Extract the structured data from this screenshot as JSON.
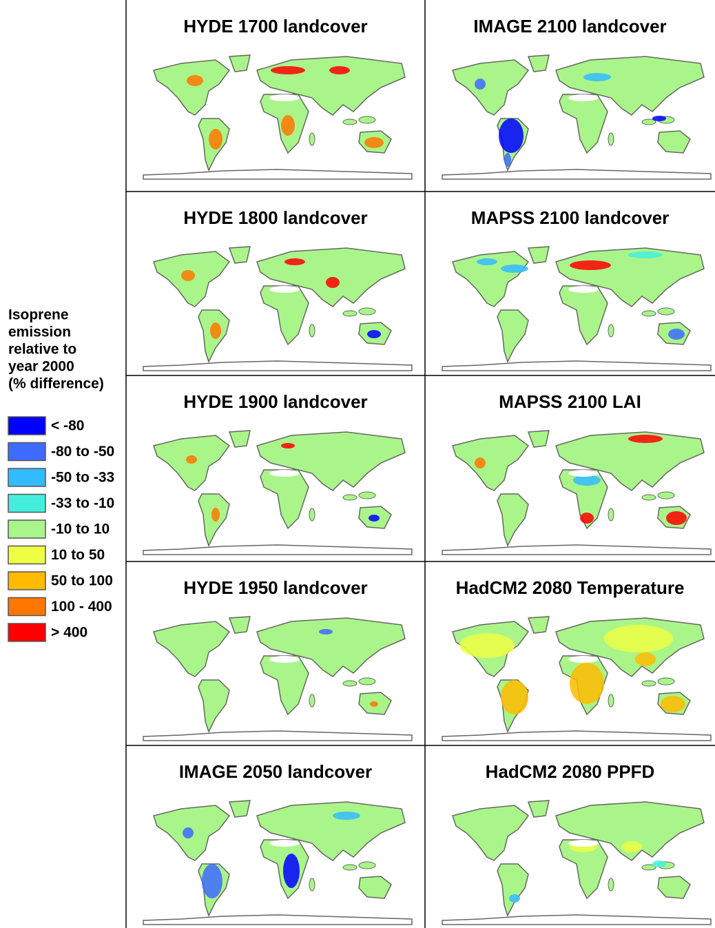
{
  "legend": {
    "title_lines": [
      "Isoprene",
      "emission",
      "relative to",
      "year 2000",
      "(% difference)"
    ],
    "items": [
      {
        "label": "< -80",
        "color": "#0000ff"
      },
      {
        "label": "-80 to -50",
        "color": "#3d6bff"
      },
      {
        "label": "-50 to -33",
        "color": "#33bbff"
      },
      {
        "label": "-33 to -10",
        "color": "#44eedd"
      },
      {
        "label": "-10 to 10",
        "color": "#aaf58a"
      },
      {
        "label": "10 to 50",
        "color": "#eeff44"
      },
      {
        "label": "50 to 100",
        "color": "#ffbb00"
      },
      {
        "label": "100 - 400",
        "color": "#ff7700"
      },
      {
        "label": "> 400",
        "color": "#ff0000"
      }
    ]
  },
  "panels": [
    {
      "title": "HYDE 1700 landcover"
    },
    {
      "title": "IMAGE 2100 landcover"
    },
    {
      "title": "HYDE 1800 landcover"
    },
    {
      "title": "MAPSS 2100 landcover"
    },
    {
      "title": "HYDE 1900 landcover"
    },
    {
      "title": "MAPSS 2100 LAI"
    },
    {
      "title": "HYDE 1950 landcover"
    },
    {
      "title": "HadCM2 2080 Temperature"
    },
    {
      "title": "IMAGE 2050 landcover"
    },
    {
      "title": "HadCM2 2080 PPFD"
    }
  ]
}
